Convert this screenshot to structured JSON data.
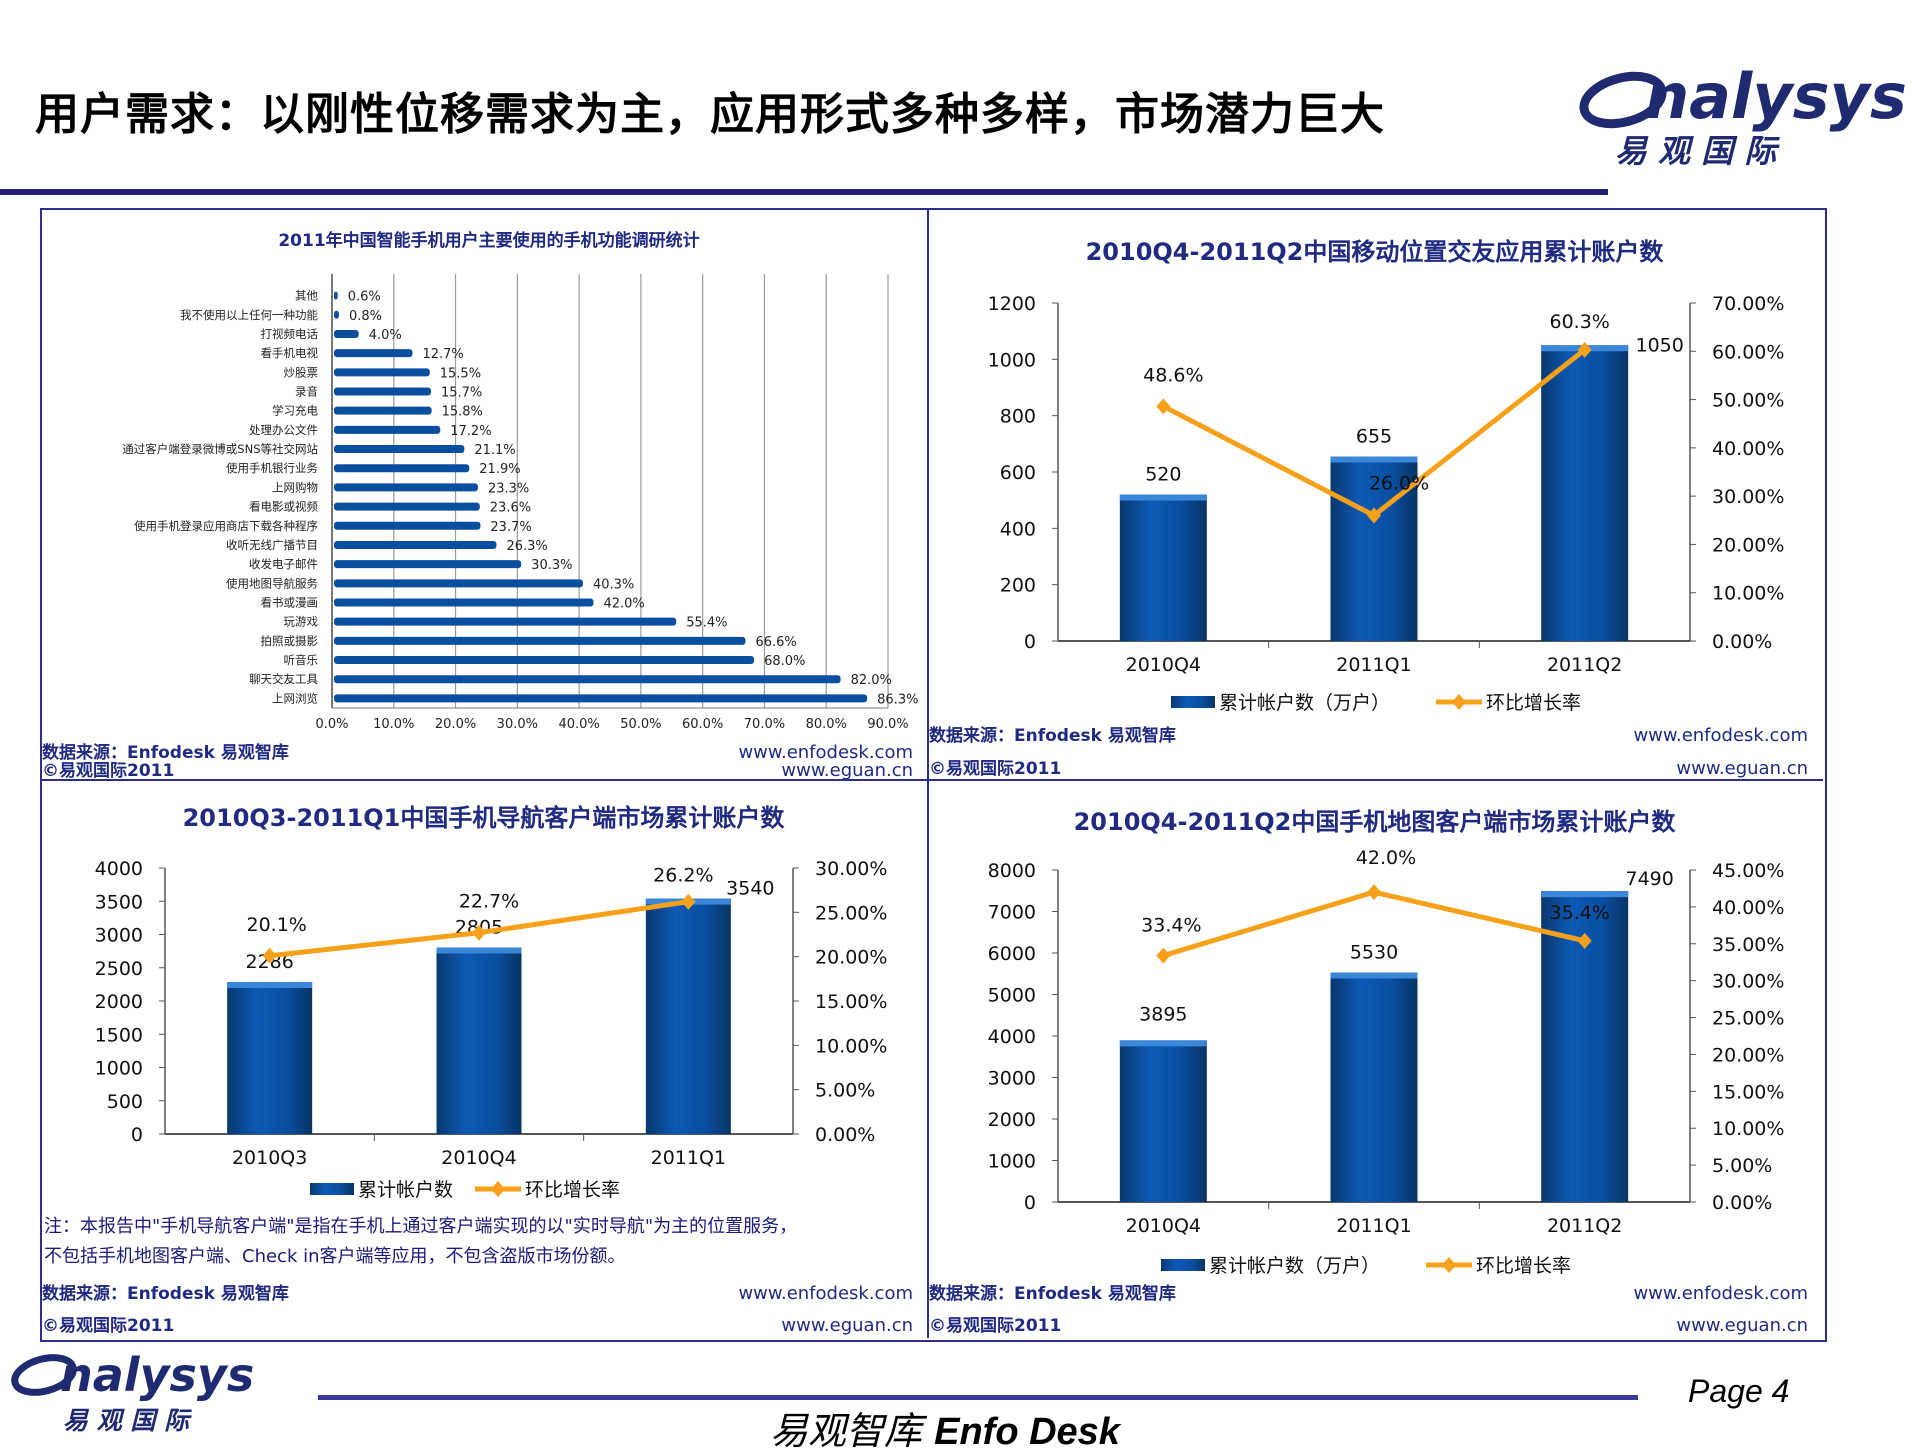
{
  "header": {
    "title": "用户需求：以刚性位移需求为主，应用形式多种多样，市场潜力巨大",
    "logo_text": "Analysys",
    "logo_cn": "易 观 国 际"
  },
  "footer": {
    "brand_cn": "易观智库",
    "brand_en": "Enfo Desk",
    "page": "Page 4",
    "logo_text": "Analysys",
    "logo_cn": "易 观 国 际"
  },
  "colors": {
    "bar": "#0a4ea0",
    "line": "#f7a11a",
    "title": "#1f2a80",
    "frame": "#2a2f8f"
  },
  "chart_data": [
    {
      "type": "bar",
      "orientation": "horizontal",
      "title": "2011年中国智能手机用户主要使用的手机功能调研统计",
      "categories": [
        "其他",
        "我不使用以上任何一种功能",
        "打视频电话",
        "看手机电视",
        "炒股票",
        "录音",
        "学习充电",
        "处理办公文件",
        "通过客户端登录微博或SNS等社交网站",
        "使用手机银行业务",
        "上网购物",
        "看电影或视频",
        "使用手机登录应用商店下载各种程序",
        "收听无线广播节目",
        "收发电子邮件",
        "使用地图导航服务",
        "看书或漫画",
        "玩游戏",
        "拍照或摄影",
        "听音乐",
        "聊天交友工具",
        "上网浏览"
      ],
      "values": [
        0.6,
        0.8,
        4.0,
        12.7,
        15.5,
        15.7,
        15.8,
        17.2,
        21.1,
        21.9,
        23.3,
        23.6,
        23.7,
        26.3,
        30.3,
        40.3,
        42.0,
        55.4,
        66.6,
        68.0,
        82.0,
        86.3
      ],
      "value_labels": [
        "0.6%",
        "0.8%",
        "4.0%",
        "12.7%",
        "15.5%",
        "15.7%",
        "15.8%",
        "17.2%",
        "21.1%",
        "21.9%",
        "23.3%",
        "23.6%",
        "23.7%",
        "26.3%",
        "30.3%",
        "40.3%",
        "42.0%",
        "55.4%",
        "66.6%",
        "68.0%",
        "82.0%",
        "86.3%"
      ],
      "xlim": [
        0,
        90
      ],
      "x_tick_labels": [
        "0.0%",
        "10.0%",
        "20.0%",
        "30.0%",
        "40.0%",
        "50.0%",
        "60.0%",
        "70.0%",
        "80.0%",
        "90.0%"
      ],
      "grid": true,
      "source": "数据来源：Enfodesk 易观智库",
      "copyright": "©易观国际2011",
      "url1": "www.enfodesk.com",
      "url2": "www.eguan.cn"
    },
    {
      "type": "bar+line",
      "title": "2010Q4-2011Q2中国移动位置交友应用累计账户数",
      "categories": [
        "2010Q4",
        "2011Q1",
        "2011Q2"
      ],
      "series": [
        {
          "name": "累计帐户数（万户）",
          "type": "bar",
          "values": [
            520,
            655,
            1050
          ],
          "labels": [
            "520",
            "655",
            "1050"
          ]
        },
        {
          "name": "环比增长率",
          "type": "line",
          "axis": "right",
          "values": [
            48.6,
            26.0,
            60.3
          ],
          "labels": [
            "48.6%",
            "26.0%",
            "60.3%"
          ]
        }
      ],
      "ylim": [
        0,
        1200
      ],
      "y_tick_labels": [
        "0",
        "200",
        "400",
        "600",
        "800",
        "1000",
        "1200"
      ],
      "y2lim": [
        0,
        70
      ],
      "y2_tick_labels": [
        "0.00%",
        "10.00%",
        "20.00%",
        "30.00%",
        "40.00%",
        "50.00%",
        "60.00%",
        "70.00%"
      ],
      "legend": "bottom",
      "source": "数据来源：Enfodesk 易观智库",
      "copyright": "©易观国际2011",
      "url1": "www.enfodesk.com",
      "url2": "www.eguan.cn"
    },
    {
      "type": "bar+line",
      "title": "2010Q3-2011Q1中国手机导航客户端市场累计账户数",
      "categories": [
        "2010Q3",
        "2010Q4",
        "2011Q1"
      ],
      "series": [
        {
          "name": "累计帐户数",
          "type": "bar",
          "values": [
            2286,
            2805,
            3540
          ],
          "labels": [
            "2286",
            "2805",
            "3540"
          ]
        },
        {
          "name": "环比增长率",
          "type": "line",
          "axis": "right",
          "values": [
            20.1,
            22.7,
            26.2
          ],
          "labels": [
            "20.1%",
            "22.7%",
            "26.2%"
          ]
        }
      ],
      "ylim": [
        0,
        4000
      ],
      "y_tick_labels": [
        "0",
        "500",
        "1000",
        "1500",
        "2000",
        "2500",
        "3000",
        "3500",
        "4000"
      ],
      "y2lim": [
        0,
        30
      ],
      "y2_tick_labels": [
        "0.00%",
        "5.00%",
        "10.00%",
        "15.00%",
        "20.00%",
        "25.00%",
        "30.00%"
      ],
      "legend": "bottom",
      "note_line1": "注：本报告中\"手机导航客户端\"是指在手机上通过客户端实现的以\"实时导航\"为主的位置服务，",
      "note_line2": "不包括手机地图客户端、Check in客户端等应用，不包含盗版市场份额。",
      "source": "数据来源：Enfodesk 易观智库",
      "copyright": "©易观国际2011",
      "url1": "www.enfodesk.com",
      "url2": "www.eguan.cn"
    },
    {
      "type": "bar+line",
      "title": "2010Q4-2011Q2中国手机地图客户端市场累计账户数",
      "categories": [
        "2010Q4",
        "2011Q1",
        "2011Q2"
      ],
      "series": [
        {
          "name": "累计帐户数（万户）",
          "type": "bar",
          "values": [
            3895,
            5530,
            7490
          ],
          "labels": [
            "3895",
            "5530",
            "7490"
          ]
        },
        {
          "name": "环比增长率",
          "type": "line",
          "axis": "right",
          "values": [
            33.4,
            42.0,
            35.4
          ],
          "labels": [
            "33.4%",
            "42.0%",
            "35.4%"
          ]
        }
      ],
      "ylim": [
        0,
        8000
      ],
      "y_tick_labels": [
        "0",
        "1000",
        "2000",
        "3000",
        "4000",
        "5000",
        "6000",
        "7000",
        "8000"
      ],
      "y2lim": [
        0,
        45
      ],
      "y2_tick_labels": [
        "0.00%",
        "5.00%",
        "10.00%",
        "15.00%",
        "20.00%",
        "25.00%",
        "30.00%",
        "35.00%",
        "40.00%",
        "45.00%"
      ],
      "legend": "bottom",
      "source": "数据来源：Enfodesk 易观智库",
      "copyright": "©易观国际2011",
      "url1": "www.enfodesk.com",
      "url2": "www.eguan.cn"
    }
  ]
}
